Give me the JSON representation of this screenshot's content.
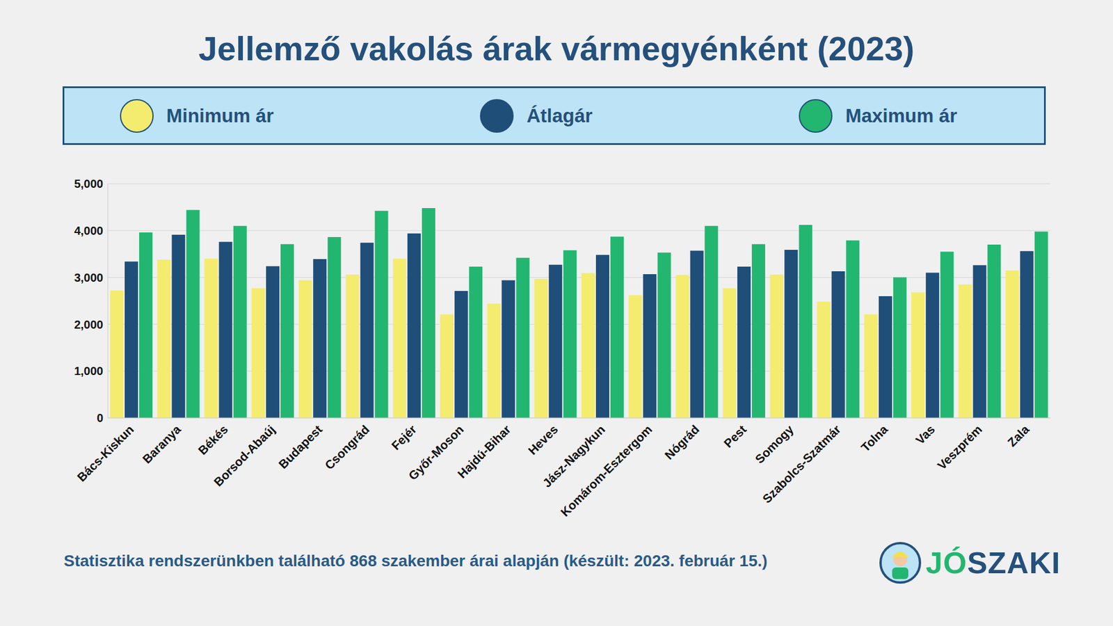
{
  "chart_data": {
    "type": "bar",
    "title": "Jellemző vakolás árak vármegyénként (2023)",
    "categories": [
      "Bács-Kiskun",
      "Baranya",
      "Békés",
      "Borsod-Abaúj",
      "Budapest",
      "Csongrád",
      "Fejér",
      "Győr-Moson",
      "Hajdú-Bihar",
      "Heves",
      "Jász-Nagykun",
      "Komárom-Esztergom",
      "Nógrád",
      "Pest",
      "Somogy",
      "Szabolcs-Szatmár",
      "Tolna",
      "Vas",
      "Veszprém",
      "Zala"
    ],
    "series": [
      {
        "name": "Minimum ár",
        "color": "#f4ec6e",
        "values": [
          2720,
          3380,
          3400,
          2770,
          2940,
          3060,
          3400,
          2210,
          2440,
          2970,
          3090,
          2620,
          3050,
          2770,
          3060,
          2480,
          2210,
          2680,
          2850,
          3150
        ]
      },
      {
        "name": "Átlagár",
        "color": "#1f4e79",
        "values": [
          3340,
          3910,
          3760,
          3240,
          3390,
          3740,
          3940,
          2710,
          2940,
          3270,
          3480,
          3070,
          3570,
          3230,
          3590,
          3130,
          2600,
          3100,
          3260,
          3560
        ]
      },
      {
        "name": "Maximum ár",
        "color": "#23b670",
        "values": [
          3960,
          4440,
          4100,
          3710,
          3860,
          4420,
          4480,
          3230,
          3420,
          3580,
          3870,
          3530,
          4100,
          3710,
          4120,
          3790,
          3000,
          3550,
          3700,
          3980
        ]
      }
    ],
    "ylim": [
      0,
      5000
    ],
    "yticks": [
      0,
      {
        "value": 1000,
        "label": "1,000"
      },
      {
        "value": 2000,
        "label": "2,000"
      },
      {
        "value": 3000,
        "label": "3,000"
      },
      {
        "value": 4000,
        "label": "4,000"
      },
      {
        "value": 5000,
        "label": "5,000"
      }
    ],
    "grid": true,
    "legend": "top",
    "annotations": [
      "Statisztika rendszerünkben található 868 szakember árai alapján (készült: 2023. február 15.)",
      "JÓSZAKI"
    ]
  }
}
